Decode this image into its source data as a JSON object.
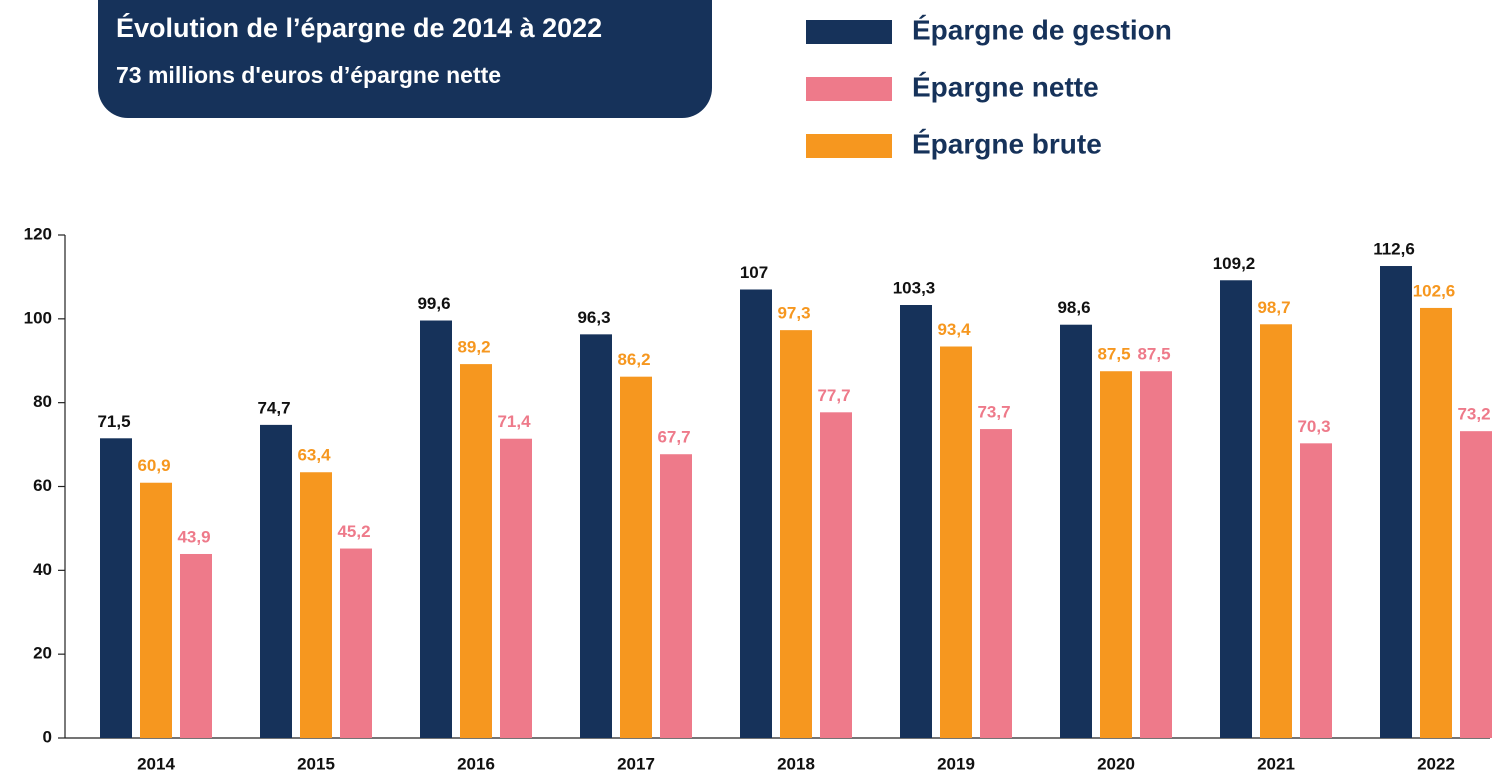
{
  "chart_data": {
    "type": "bar",
    "title": "Évolution de l’épargne de 2014 à 2022",
    "subtitle": "73 millions d'euros d’épargne nette",
    "categories": [
      "2014",
      "2015",
      "2016",
      "2017",
      "2018",
      "2019",
      "2020",
      "2021",
      "2022"
    ],
    "series": [
      {
        "name": "Épargne de gestion",
        "color": "#16325a",
        "label_color": "#111111",
        "values": [
          71.5,
          74.7,
          99.6,
          96.3,
          107,
          103.3,
          98.6,
          109.2,
          112.6
        ],
        "value_labels": [
          "71,5",
          "74,7",
          "99,6",
          "96,3",
          "107",
          "103,3",
          "98,6",
          "109,2",
          "112,6"
        ]
      },
      {
        "name": "Épargne brute",
        "color": "#f6971f",
        "label_color": "#f6971f",
        "values": [
          60.9,
          63.4,
          89.2,
          86.2,
          97.3,
          93.4,
          87.5,
          98.7,
          102.6
        ],
        "value_labels": [
          "60,9",
          "63,4",
          "89,2",
          "86,2",
          "97,3",
          "93,4",
          "87,5",
          "98,7",
          "102,6"
        ]
      },
      {
        "name": "Épargne nette",
        "color": "#ee7a8a",
        "label_color": "#ee7a8a",
        "values": [
          43.9,
          45.2,
          71.4,
          67.7,
          77.7,
          73.7,
          87.5,
          70.3,
          73.2
        ],
        "value_labels": [
          "43,9",
          "45,2",
          "71,4",
          "67,7",
          "77,7",
          "73,7",
          "87,5",
          "70,3",
          "73,2"
        ]
      }
    ],
    "ylim": [
      0,
      120
    ],
    "yticks": [
      0,
      20,
      40,
      60,
      80,
      100,
      120
    ],
    "grid": false
  }
}
